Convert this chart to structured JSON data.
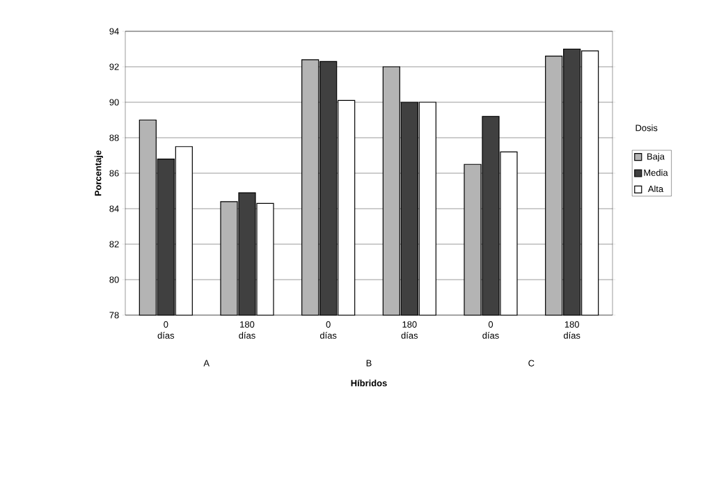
{
  "chart_data": {
    "type": "bar",
    "xlabel": "Híbridos",
    "ylabel": "Porcentaje",
    "legend_title": "Dosis",
    "categories": [
      "0 días",
      "180 días",
      "0 días",
      "180 días",
      "0 días",
      "180 días"
    ],
    "annotations": [
      "A",
      "B",
      "C"
    ],
    "series": [
      {
        "name": "Baja",
        "color": "#b4b4b4",
        "values": [
          89.0,
          84.4,
          92.4,
          92.0,
          86.5,
          92.6
        ]
      },
      {
        "name": "Media",
        "color": "#404040",
        "values": [
          86.8,
          84.9,
          92.3,
          90.0,
          89.2,
          93.0
        ]
      },
      {
        "name": "Alta",
        "color": "#ffffff",
        "values": [
          87.5,
          84.3,
          90.1,
          90.0,
          87.2,
          92.9
        ]
      }
    ],
    "ylim": [
      78,
      94
    ],
    "yticks": [
      78,
      80,
      82,
      84,
      86,
      88,
      90,
      92,
      94
    ],
    "grid": "y",
    "legend": "right"
  }
}
